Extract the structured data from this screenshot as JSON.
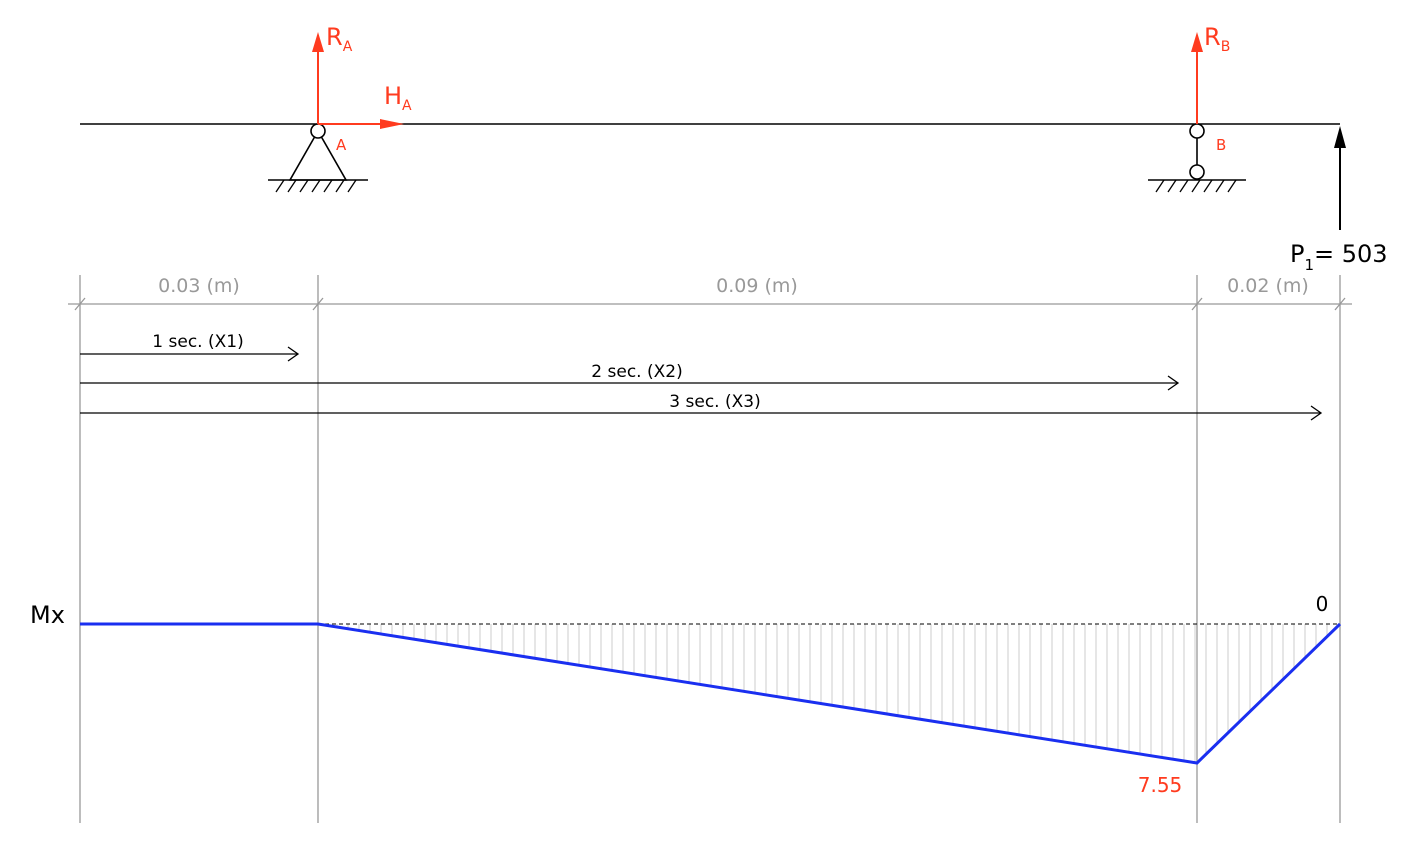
{
  "supports": {
    "A": {
      "label": "A",
      "reaction_v": "R",
      "reaction_v_sub": "A",
      "reaction_h": "H",
      "reaction_h_sub": "A"
    },
    "B": {
      "label": "B",
      "reaction_v": "R",
      "reaction_v_sub": "B"
    }
  },
  "load": {
    "symbol": "P",
    "sub": "1",
    "text": "= 503"
  },
  "dimensions": [
    "0.03 (m)",
    "0.09 (m)",
    "0.02 (m)"
  ],
  "sections": [
    "1 sec. (X1)",
    "2 sec. (X2)",
    "3 sec. (X3)"
  ],
  "diagram": {
    "axis_label": "Mx",
    "end_value_label": "0",
    "peak_value_label": "7.55"
  },
  "colors": {
    "reaction": "#ff3b1f",
    "moment_line": "#1a2ff0",
    "dimension": "#999999",
    "hatch": "#cccccc"
  }
}
